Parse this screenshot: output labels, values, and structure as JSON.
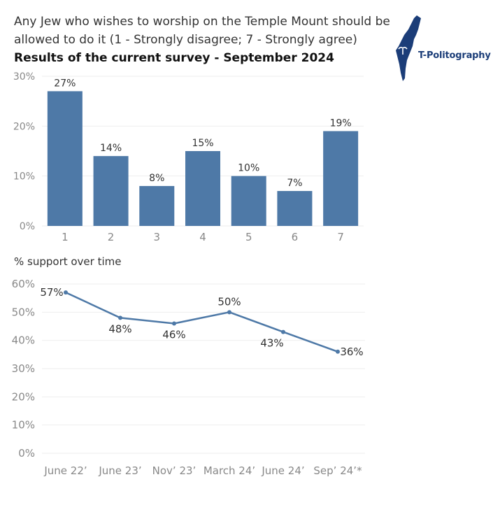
{
  "header": {
    "title": "Any Jew who wishes to worship on the Temple Mount should be allowed to do it (1 - Strongly disagree; 7 - Strongly agree)",
    "subtitle": "Results of the current survey - September 2024",
    "logo_text": "T-Politography",
    "logo_icon": "israel-map-icon"
  },
  "chart_data": [
    {
      "type": "bar",
      "categories": [
        "1",
        "2",
        "3",
        "4",
        "5",
        "6",
        "7"
      ],
      "values": [
        27,
        14,
        8,
        15,
        10,
        7,
        19
      ],
      "data_labels": [
        "27%",
        "14%",
        "8%",
        "15%",
        "10%",
        "7%",
        "19%"
      ],
      "ylim": [
        0,
        30
      ],
      "yticks": [
        "0%",
        "10%",
        "20%",
        "30%"
      ],
      "ytick_values": [
        0,
        10,
        20,
        30
      ],
      "color": "#4e79a7",
      "grid": true
    },
    {
      "type": "line",
      "title": "% support over time",
      "categories": [
        "June 22’",
        "June 23’",
        "Nov’ 23’",
        "March 24’",
        "June 24’",
        "Sep’ 24’*"
      ],
      "values": [
        57,
        48,
        46,
        50,
        43,
        36
      ],
      "data_labels": [
        "57%",
        "48%",
        "46%",
        "50%",
        "43%",
        "36%"
      ],
      "ylim": [
        0,
        60
      ],
      "yticks": [
        "0%",
        "10%",
        "20%",
        "30%",
        "40%",
        "50%",
        "60%"
      ],
      "ytick_values": [
        0,
        10,
        20,
        30,
        40,
        50,
        60
      ],
      "color": "#4e79a7",
      "grid": true
    }
  ]
}
